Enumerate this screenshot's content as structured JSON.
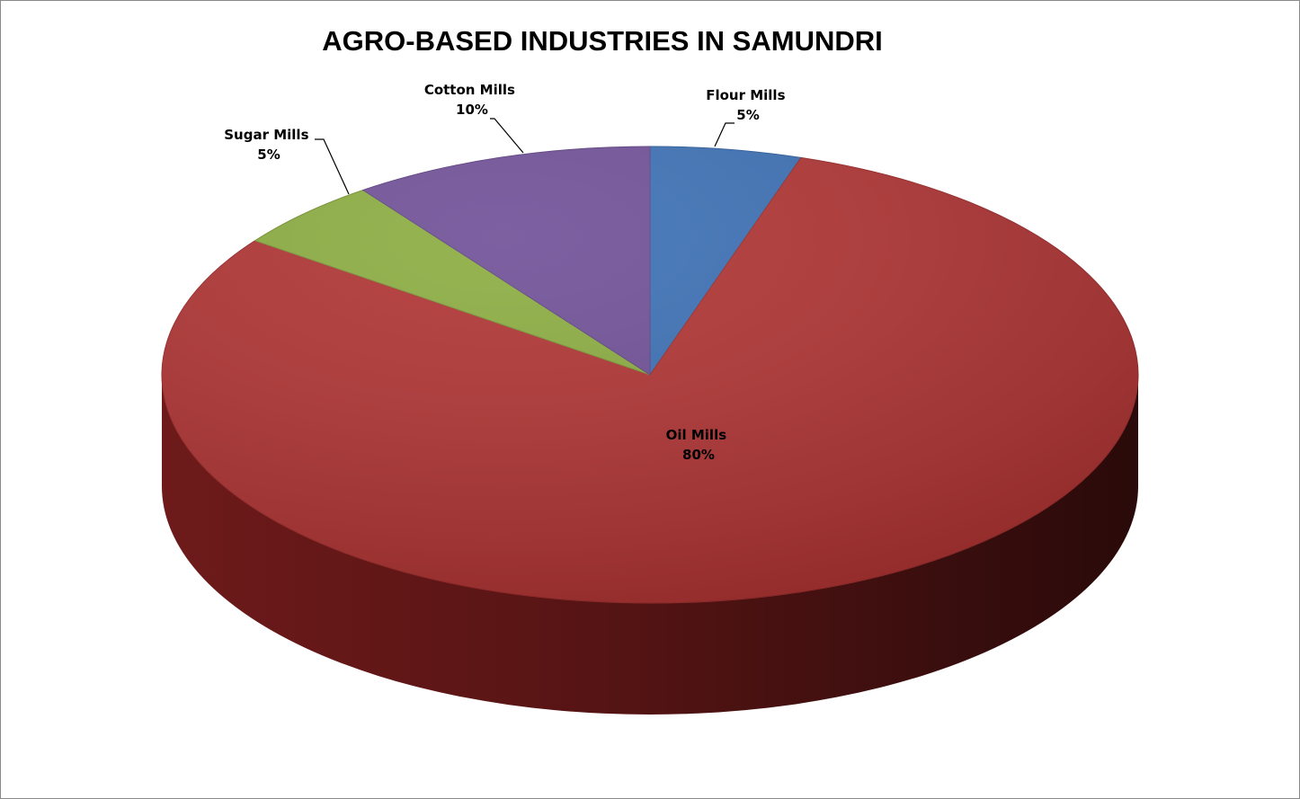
{
  "chart_data": {
    "type": "pie",
    "title": "AGRO-BASED INDUSTRIES IN SAMUNDRI",
    "slices": [
      {
        "label": "Flour Mills",
        "value": 5,
        "value_label": "5%",
        "color": "#3a6fb5"
      },
      {
        "label": "Oil Mills",
        "value": 80,
        "value_label": "80%",
        "color": "#b03232"
      },
      {
        "label": "Sugar Mills",
        "value": 5,
        "value_label": "5%",
        "color": "#8aac3e"
      },
      {
        "label": "Cotton Mills",
        "value": 10,
        "value_label": "10%",
        "color": "#6e4e96"
      }
    ],
    "start_angle_deg": 0,
    "direction": "clockwise",
    "style": "3d",
    "legend": "none"
  }
}
